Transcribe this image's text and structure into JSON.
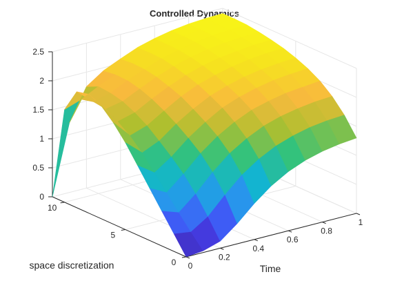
{
  "chart_data": {
    "type": "surface",
    "title": "Controlled Dynamics",
    "xlabel": "Time",
    "ylabel": "space discretization",
    "zlabel": "",
    "xlim": [
      0,
      1
    ],
    "ylim": [
      0,
      10
    ],
    "zlim": [
      0,
      2.5
    ],
    "x_ticks": [
      "0",
      "0.2",
      "0.4",
      "0.6",
      "0.8",
      "1"
    ],
    "y_ticks": [
      "0",
      "5",
      "10"
    ],
    "z_ticks": [
      "0",
      "0.5",
      "1",
      "1.5",
      "2",
      "2.5"
    ],
    "grid": true,
    "colormap": [
      "#3e26a8",
      "#4743f6",
      "#2d8ef3",
      "#12b5cf",
      "#33c27c",
      "#aebf2f",
      "#f8ba3d",
      "#f6e21f",
      "#f9fb15"
    ],
    "time": [
      0,
      0.1,
      0.2,
      0.3,
      0.4,
      0.5,
      0.6,
      0.7,
      0.8,
      0.9,
      1.0
    ],
    "space": [
      0,
      1,
      2,
      3,
      4,
      5,
      6,
      7,
      8,
      9,
      10,
      11
    ],
    "z": [
      [
        0.0,
        0.03,
        0.12,
        0.35,
        0.62,
        0.85,
        1.02,
        1.14,
        1.22,
        1.27,
        1.3
      ],
      [
        0.3,
        0.26,
        0.45,
        0.75,
        1.02,
        1.22,
        1.37,
        1.47,
        1.54,
        1.58,
        1.6
      ],
      [
        0.6,
        0.5,
        0.75,
        1.05,
        1.3,
        1.48,
        1.62,
        1.71,
        1.77,
        1.81,
        1.83
      ],
      [
        0.9,
        0.75,
        1.0,
        1.28,
        1.5,
        1.67,
        1.8,
        1.88,
        1.94,
        1.97,
        2.0
      ],
      [
        1.2,
        1.0,
        1.2,
        1.45,
        1.65,
        1.82,
        1.93,
        2.01,
        2.07,
        2.1,
        2.12
      ],
      [
        1.5,
        1.25,
        1.38,
        1.6,
        1.78,
        1.93,
        2.03,
        2.11,
        2.16,
        2.19,
        2.21
      ],
      [
        1.75,
        1.45,
        1.55,
        1.73,
        1.9,
        2.03,
        2.12,
        2.19,
        2.24,
        2.27,
        2.28
      ],
      [
        1.95,
        1.6,
        1.68,
        1.84,
        1.98,
        2.1,
        2.19,
        2.25,
        2.29,
        2.32,
        2.33
      ],
      [
        2.05,
        1.72,
        1.78,
        1.92,
        2.05,
        2.16,
        2.24,
        2.3,
        2.34,
        2.36,
        2.37
      ],
      [
        2.0,
        1.75,
        1.83,
        1.97,
        2.09,
        2.2,
        2.27,
        2.33,
        2.37,
        2.39,
        2.4
      ],
      [
        1.6,
        1.7,
        1.85,
        1.98,
        2.1,
        2.21,
        2.28,
        2.34,
        2.38,
        2.4,
        2.41
      ],
      [
        0.0,
        1.2,
        1.75,
        1.95,
        2.08,
        2.2,
        2.28,
        2.34,
        2.38,
        2.4,
        2.41
      ]
    ]
  }
}
